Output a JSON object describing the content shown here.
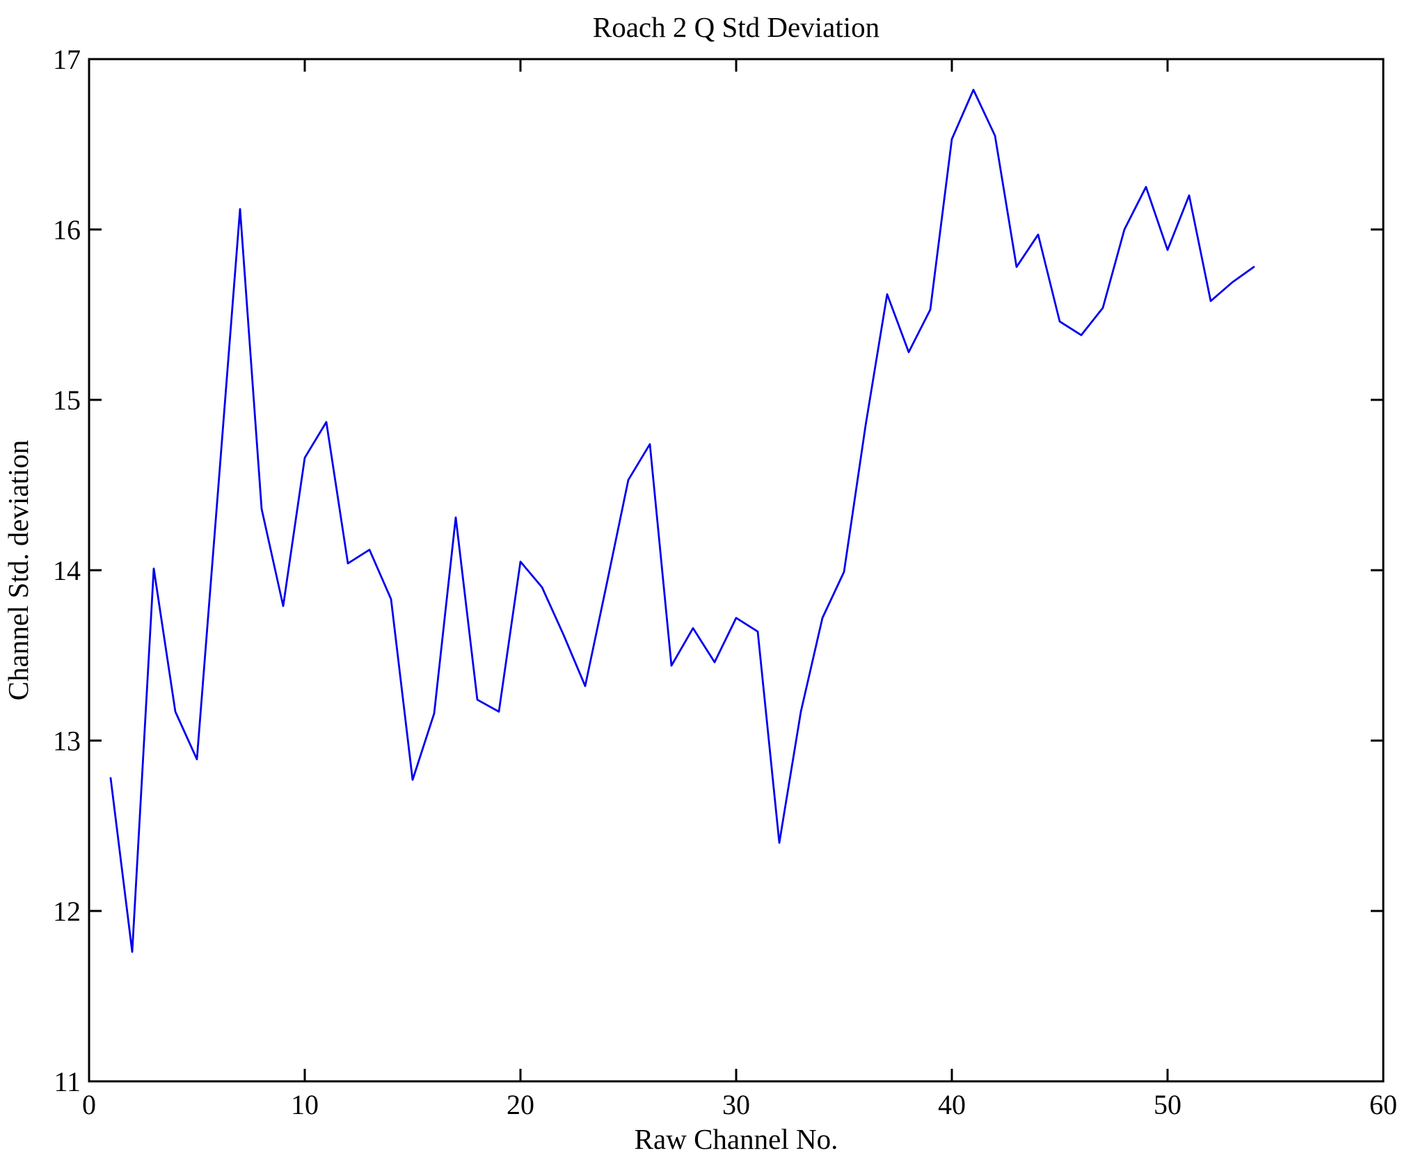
{
  "chart_data": {
    "type": "line",
    "title": "Roach 2 Q Std Deviation",
    "xlabel": "Raw Channel No.",
    "ylabel": "Channel Std. deviation",
    "xlim": [
      0,
      60
    ],
    "ylim": [
      11,
      17
    ],
    "xticks": [
      0,
      10,
      20,
      30,
      40,
      50,
      60
    ],
    "yticks": [
      11,
      12,
      13,
      14,
      15,
      16,
      17
    ],
    "grid": false,
    "legend": "none",
    "line_color": "#0000EE",
    "axis_color": "#000000",
    "series": [
      {
        "name": "Channel Std deviation vs Raw Channel No",
        "x": [
          1,
          2,
          3,
          4,
          5,
          6,
          7,
          8,
          9,
          10,
          11,
          12,
          13,
          14,
          15,
          16,
          17,
          18,
          19,
          20,
          21,
          22,
          23,
          24,
          25,
          26,
          27,
          28,
          29,
          30,
          31,
          32,
          33,
          34,
          35,
          36,
          37,
          38,
          39,
          40,
          41,
          42,
          43,
          44,
          45,
          46,
          47,
          48,
          49,
          50,
          51,
          52,
          53,
          54
        ],
        "y": [
          12.78,
          11.76,
          14.01,
          13.17,
          12.89,
          14.5,
          16.12,
          14.36,
          13.79,
          14.66,
          14.87,
          14.04,
          14.12,
          13.83,
          12.77,
          13.16,
          14.31,
          13.24,
          13.17,
          14.05,
          13.9,
          13.62,
          13.32,
          13.92,
          14.53,
          14.74,
          13.44,
          13.66,
          13.46,
          13.72,
          13.64,
          12.4,
          13.17,
          13.72,
          13.99,
          14.85,
          15.62,
          15.28,
          15.53,
          16.53,
          16.82,
          16.55,
          15.78,
          15.97,
          15.46,
          15.38,
          15.54,
          16.0,
          16.25,
          15.88,
          16.2,
          15.58,
          15.69,
          15.78
        ]
      }
    ]
  }
}
